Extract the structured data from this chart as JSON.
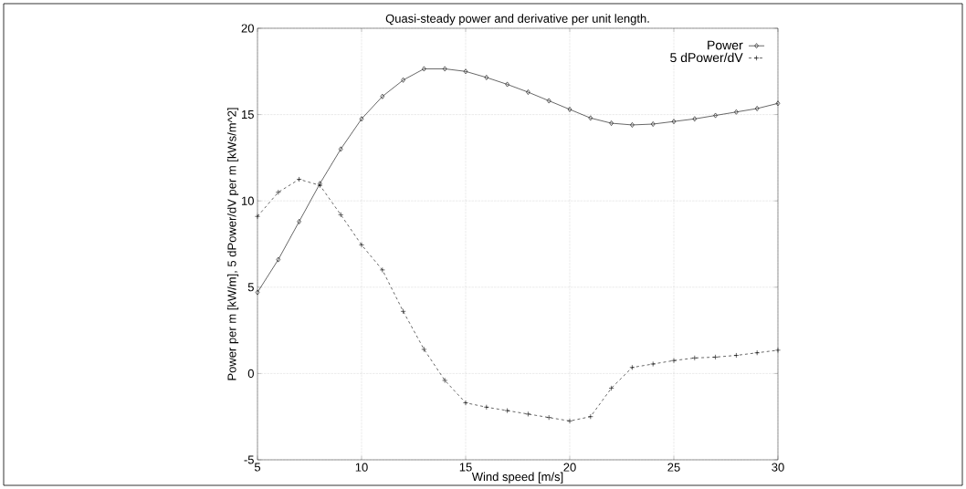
{
  "chart_data": {
    "type": "line",
    "title": "Quasi-steady power and derivative per unit length.",
    "xlabel": "Wind speed  [m/s]",
    "ylabel": "Power per m  [kW/m], 5 dPower/dV per m  [kWs/m^2]",
    "x": [
      5,
      6,
      7,
      8,
      9,
      10,
      11,
      12,
      13,
      14,
      15,
      16,
      17,
      18,
      19,
      20,
      21,
      22,
      23,
      24,
      25,
      26,
      27,
      28,
      29,
      30
    ],
    "series": [
      {
        "name": "Power",
        "color": "#000000",
        "marker": "diamond",
        "line_style": "solid",
        "values": [
          4.7,
          6.6,
          8.8,
          11.0,
          13.0,
          14.75,
          16.05,
          17.0,
          17.65,
          17.65,
          17.5,
          17.15,
          16.75,
          16.3,
          15.8,
          15.3,
          14.8,
          14.5,
          14.4,
          14.45,
          14.6,
          14.75,
          14.95,
          15.15,
          15.35,
          15.65
        ]
      },
      {
        "name": "5 dPower/dV",
        "color": "#000000",
        "marker": "cross",
        "line_style": "dashed",
        "values": [
          9.1,
          10.5,
          11.25,
          10.9,
          9.2,
          7.45,
          6.0,
          3.6,
          1.4,
          -0.4,
          -1.7,
          -1.95,
          -2.15,
          -2.35,
          -2.55,
          -2.75,
          -2.5,
          -0.85,
          0.35,
          0.55,
          0.75,
          0.9,
          0.95,
          1.05,
          1.2,
          1.35
        ]
      }
    ],
    "xlim": [
      5,
      30
    ],
    "ylim": [
      -5,
      20
    ],
    "xticks": [
      5,
      10,
      15,
      20,
      25,
      30
    ],
    "yticks": [
      -5,
      0,
      5,
      10,
      15,
      20
    ],
    "grid": true,
    "legend": "top right"
  }
}
